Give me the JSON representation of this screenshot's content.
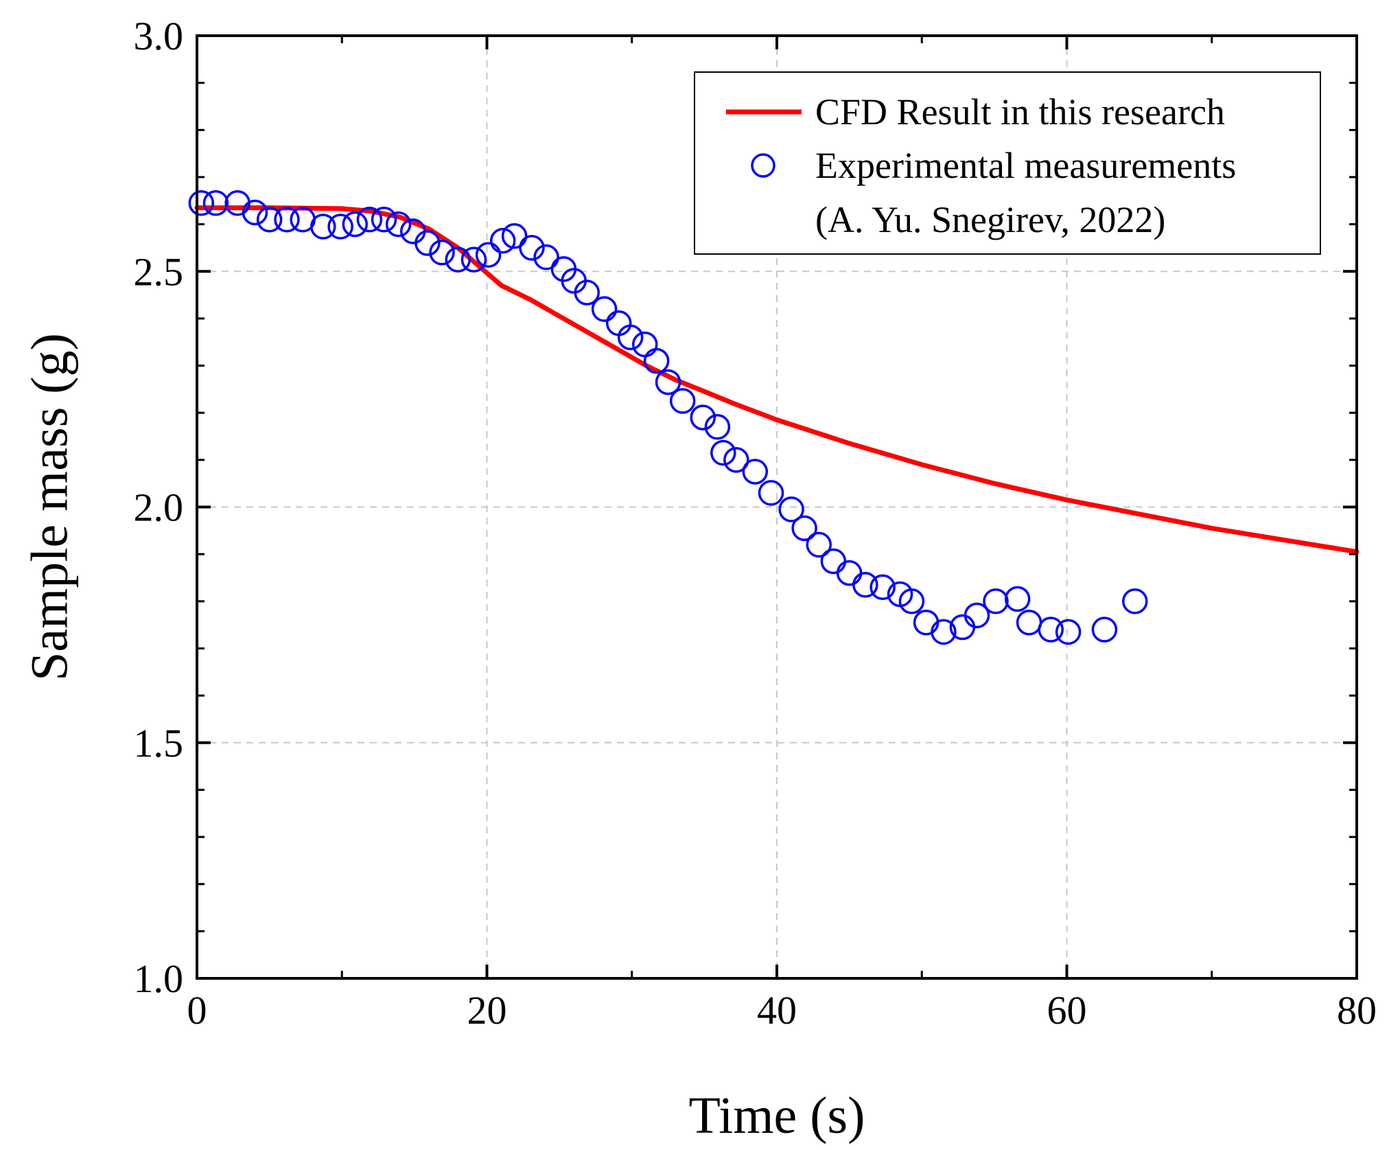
{
  "chart_data": {
    "type": "line",
    "xlabel": "Time (s)",
    "ylabel": "Sample mass (g)",
    "xlim": [
      0,
      80
    ],
    "ylim": [
      1.0,
      3.0
    ],
    "xticks": [
      "0",
      "20",
      "40",
      "60",
      "80"
    ],
    "yticks": [
      "1.0",
      "1.5",
      "2.0",
      "2.5",
      "3.0"
    ],
    "grid": true,
    "legend_position": "top-right",
    "series": [
      {
        "name": "CFD Result in this research",
        "style": "line",
        "color": "#ff0000",
        "x": [
          0,
          5,
          10,
          12,
          14,
          16,
          18,
          19.5,
          21,
          23,
          25,
          27,
          29,
          31,
          33,
          35,
          37,
          40,
          45,
          50,
          55,
          60,
          65,
          70,
          75,
          80
        ],
        "y": [
          2.635,
          2.635,
          2.633,
          2.628,
          2.615,
          2.59,
          2.55,
          2.51,
          2.47,
          2.44,
          2.405,
          2.37,
          2.335,
          2.3,
          2.27,
          2.245,
          2.22,
          2.185,
          2.135,
          2.09,
          2.05,
          2.015,
          1.985,
          1.955,
          1.93,
          1.905
        ]
      },
      {
        "name": "Experimental measurements\n(A. Yu. Snegirev, 2022)",
        "legend_lines": [
          "Experimental measurements",
          "(A. Yu. Snegirev, 2022)"
        ],
        "style": "scatter",
        "marker": "open-circle",
        "color": "#0000ff",
        "x": [
          0.3,
          1.3,
          2.8,
          4.0,
          5.0,
          6.2,
          7.3,
          8.7,
          9.9,
          10.9,
          11.9,
          12.9,
          13.9,
          14.9,
          15.9,
          16.9,
          18.0,
          19.1,
          20.1,
          21.1,
          21.9,
          23.1,
          24.1,
          25.3,
          26.0,
          26.9,
          28.1,
          29.1,
          29.9,
          30.9,
          31.7,
          32.5,
          33.5,
          34.9,
          35.9,
          36.3,
          37.2,
          38.5,
          39.6,
          41.0,
          41.9,
          42.9,
          43.9,
          45.0,
          46.1,
          47.3,
          48.5,
          49.3,
          50.3,
          51.5,
          52.8,
          53.8,
          55.1,
          56.6,
          57.4,
          58.9,
          60.1,
          62.6,
          64.7
        ],
        "y": [
          2.645,
          2.645,
          2.645,
          2.625,
          2.61,
          2.61,
          2.61,
          2.595,
          2.595,
          2.6,
          2.61,
          2.61,
          2.6,
          2.585,
          2.56,
          2.54,
          2.525,
          2.525,
          2.535,
          2.565,
          2.575,
          2.55,
          2.53,
          2.505,
          2.48,
          2.455,
          2.42,
          2.39,
          2.36,
          2.345,
          2.31,
          2.265,
          2.225,
          2.19,
          2.17,
          2.115,
          2.1,
          2.075,
          2.03,
          1.995,
          1.955,
          1.92,
          1.885,
          1.86,
          1.835,
          1.83,
          1.815,
          1.8,
          1.755,
          1.735,
          1.745,
          1.77,
          1.8,
          1.805,
          1.755,
          1.74,
          1.735,
          1.74,
          1.8
        ]
      }
    ]
  }
}
